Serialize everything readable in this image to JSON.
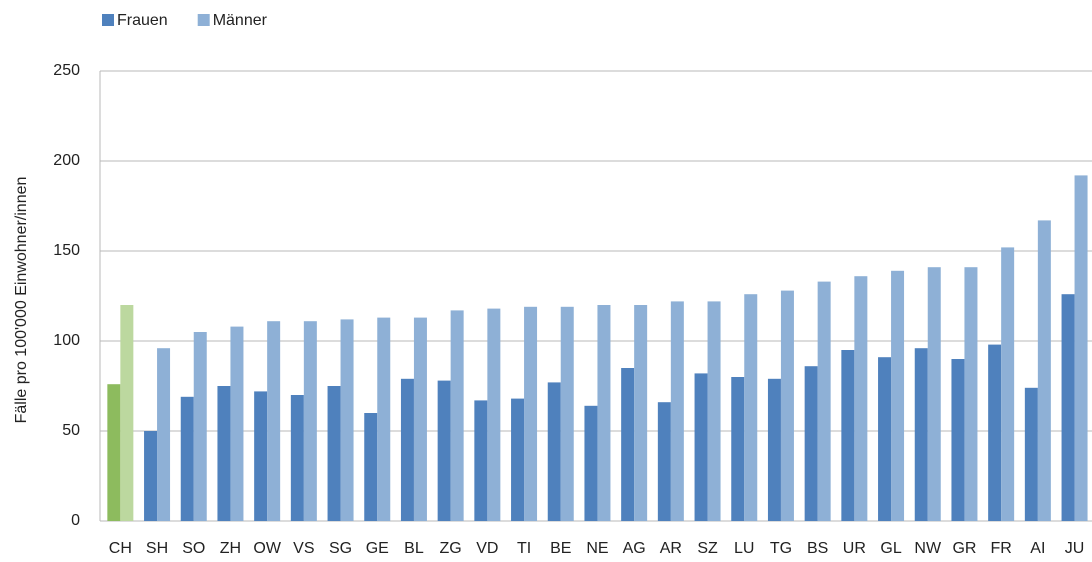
{
  "chart_data": {
    "type": "bar",
    "y_label": "Fälle pro 100'000 Einwohner/innen",
    "categories": [
      "CH",
      "SH",
      "SO",
      "ZH",
      "OW",
      "VS",
      "SG",
      "GE",
      "BL",
      "ZG",
      "VD",
      "TI",
      "BE",
      "NE",
      "AG",
      "AR",
      "SZ",
      "LU",
      "TG",
      "BS",
      "UR",
      "GL",
      "NW",
      "GR",
      "FR",
      "AI",
      "JU"
    ],
    "highlight_categories": [
      "CH"
    ],
    "series": [
      {
        "name": "Frauen",
        "color": "#4f81bd",
        "highlight_color": "#8dbb5e",
        "values": [
          76,
          50,
          69,
          75,
          72,
          70,
          75,
          60,
          79,
          78,
          67,
          68,
          77,
          64,
          85,
          66,
          82,
          80,
          79,
          86,
          95,
          91,
          96,
          90,
          98,
          74,
          126
        ]
      },
      {
        "name": "Männer",
        "color": "#8eb0d6",
        "highlight_color": "#bcd89f",
        "values": [
          120,
          96,
          105,
          108,
          111,
          111,
          112,
          113,
          113,
          117,
          118,
          119,
          119,
          120,
          120,
          122,
          122,
          126,
          128,
          133,
          136,
          139,
          141,
          141,
          152,
          167,
          192
        ]
      }
    ],
    "ylim": [
      0,
      250
    ],
    "yticks": [
      0,
      50,
      100,
      150,
      200,
      250
    ],
    "grid": true,
    "legend": "top-left"
  }
}
